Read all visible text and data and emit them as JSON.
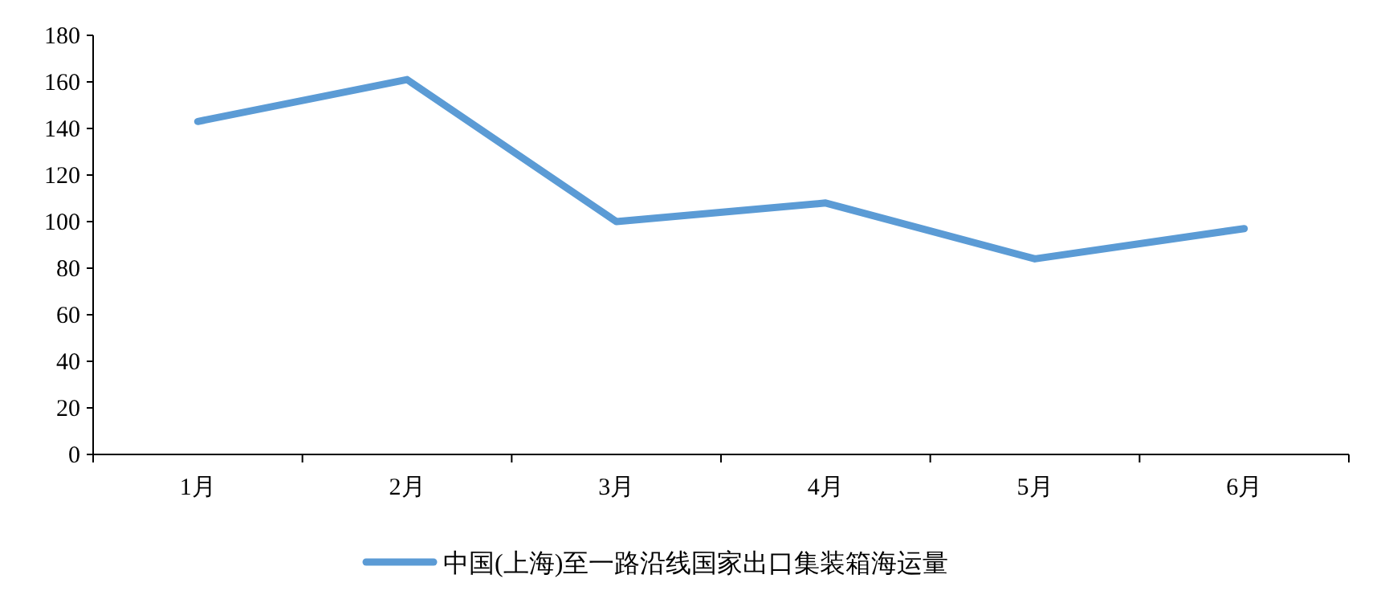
{
  "chart_data": {
    "type": "line",
    "categories": [
      "1月",
      "2月",
      "3月",
      "4月",
      "5月",
      "6月"
    ],
    "series": [
      {
        "name": "中国(上海)至一路沿线国家出口集装箱海运量",
        "color": "#5b9bd5",
        "values": [
          143,
          161,
          100,
          108,
          84,
          97
        ]
      }
    ],
    "ylim": [
      0,
      180
    ],
    "yticks": [
      0,
      20,
      40,
      60,
      80,
      100,
      120,
      140,
      160,
      180
    ],
    "grid": false,
    "legend": "bottom",
    "marker": "none",
    "line_style": "solid"
  }
}
